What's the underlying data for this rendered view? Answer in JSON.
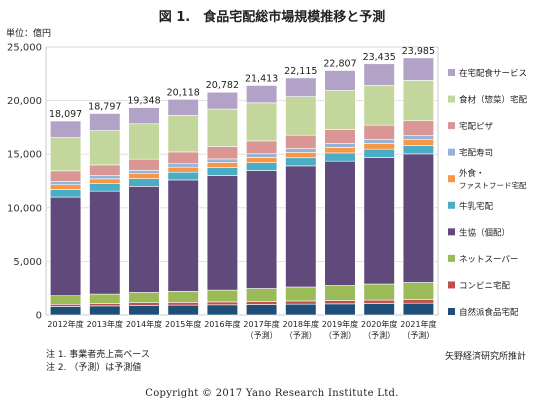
{
  "title": "図 1.　食品宅配総市場規模推移と予測",
  "unit_label": "単位：億円",
  "notes": [
    "注 1. 事業者売上高ベース",
    "注 2. （予測）は予測値"
  ],
  "source": "矢野経済研究所推計",
  "copyright": "Copyright © 2017 Yano Research Institute Ltd.",
  "chart_data": {
    "type": "bar",
    "stacked": true,
    "categories": [
      [
        "2012年度"
      ],
      [
        "2013年度"
      ],
      [
        "2014年度"
      ],
      [
        "2015年度"
      ],
      [
        "2016年度"
      ],
      [
        "2017年度",
        "（予測）"
      ],
      [
        "2018年度",
        "（予測）"
      ],
      [
        "2019年度",
        "（予測）"
      ],
      [
        "2020年度",
        "（予測）"
      ],
      [
        "2021年度",
        "（予測）"
      ]
    ],
    "totals": [
      18097,
      18797,
      19348,
      20118,
      20782,
      21413,
      22115,
      22807,
      23435,
      23985
    ],
    "ylim": [
      0,
      25000
    ],
    "yticks": [
      0,
      5000,
      10000,
      15000,
      20000,
      25000
    ],
    "grid": true,
    "legend_position": "right",
    "series": [
      {
        "name": "自然派食品宅配",
        "color": "#1f4e79",
        "values": [
          800,
          850,
          900,
          920,
          950,
          980,
          1010,
          1040,
          1070,
          1100
        ]
      },
      {
        "name": "コンビニ宅配",
        "color": "#c0504d",
        "values": [
          200,
          230,
          250,
          260,
          270,
          290,
          300,
          310,
          320,
          330
        ]
      },
      {
        "name": "ネットスーパー",
        "color": "#9bbb59",
        "values": [
          800,
          870,
          950,
          1020,
          1100,
          1200,
          1300,
          1400,
          1500,
          1600
        ]
      },
      {
        "name": "生協（個配）",
        "color": "#604a7b",
        "values": [
          9200,
          9600,
          9900,
          10400,
          10700,
          11000,
          11300,
          11600,
          11800,
          12000
        ]
      },
      {
        "name": "牛乳宅配",
        "color": "#4bacc6",
        "values": [
          700,
          700,
          720,
          720,
          730,
          740,
          760,
          770,
          780,
          790
        ]
      },
      {
        "name": "外食・ファストフード宅配",
        "color": "#f79646",
        "values": [
          450,
          450,
          460,
          470,
          480,
          490,
          500,
          510,
          520,
          530
        ]
      },
      {
        "name": "宅配寿司",
        "color": "#95b3d7",
        "values": [
          300,
          300,
          310,
          320,
          330,
          340,
          350,
          360,
          370,
          380
        ]
      },
      {
        "name": "宅配ピザ",
        "color": "#d99694",
        "values": [
          1000,
          1000,
          1050,
          1100,
          1150,
          1200,
          1250,
          1300,
          1350,
          1400
        ]
      },
      {
        "name": "食材（惣菜）宅配",
        "color": "#c3d69b",
        "values": [
          3100,
          3200,
          3300,
          3400,
          3500,
          3550,
          3600,
          3650,
          3700,
          3750
        ]
      },
      {
        "name": "在宅配食サービス",
        "color": "#b3a2c7",
        "values": [
          1547,
          1597,
          1508,
          1508,
          1572,
          1623,
          1745,
          1867,
          2025,
          2105
        ]
      }
    ]
  }
}
